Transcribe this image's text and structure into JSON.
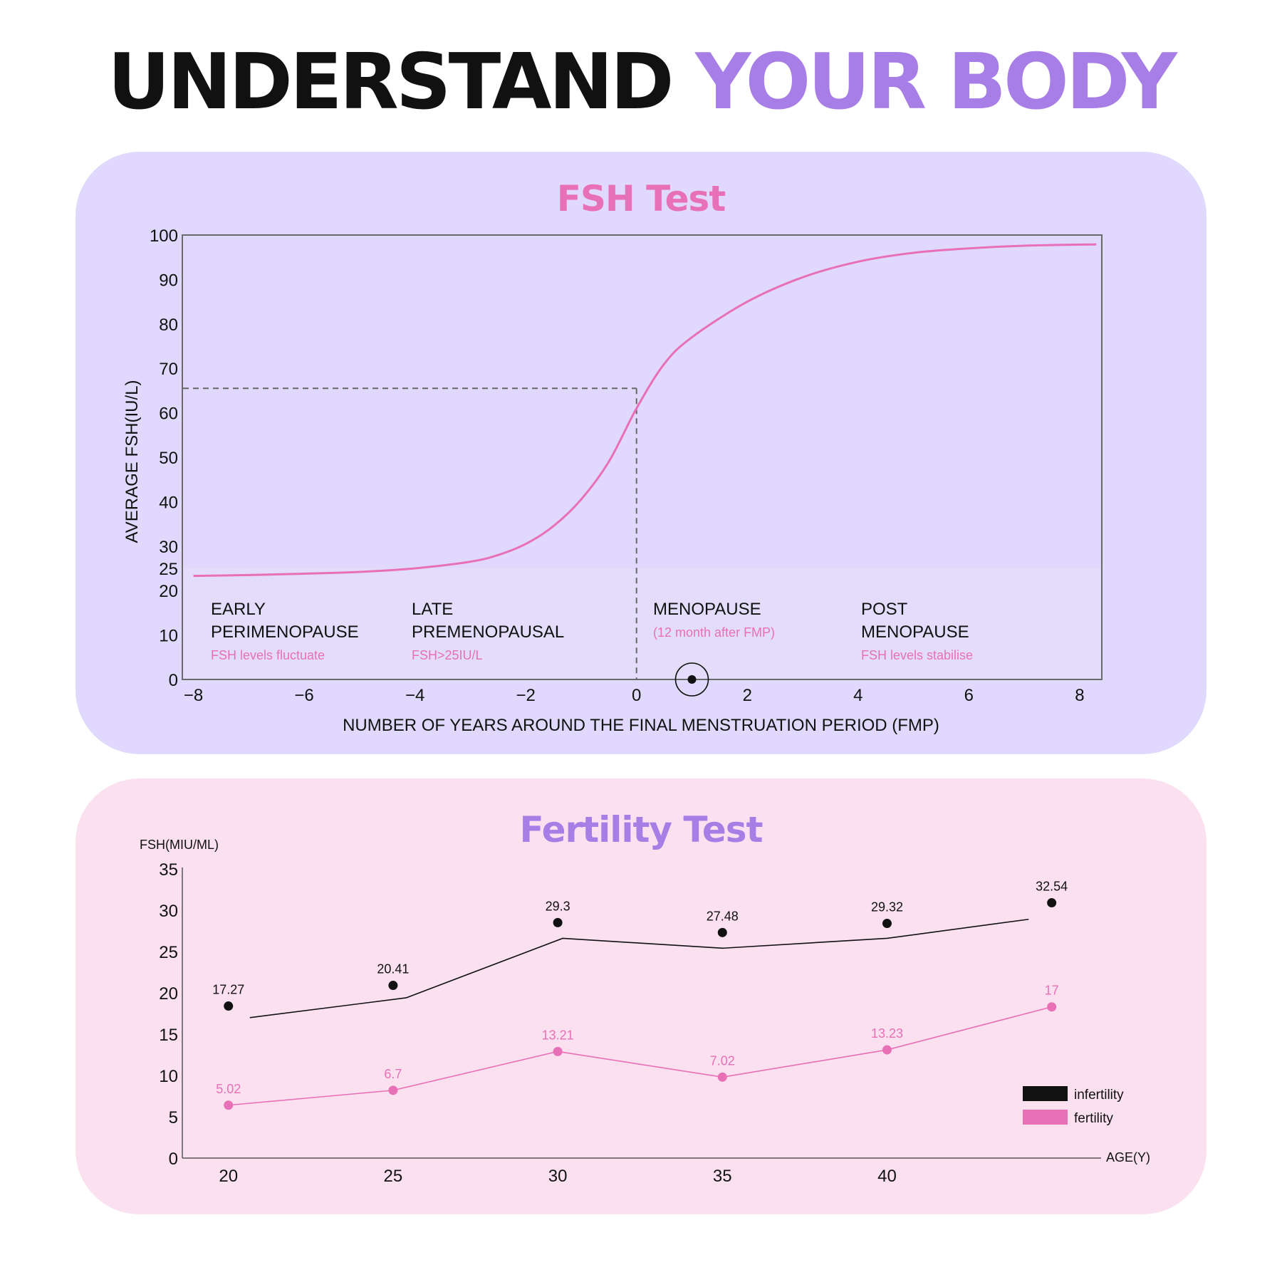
{
  "title": {
    "part1": "UNDERSTAND",
    "part2": "YOUR BODY"
  },
  "colors": {
    "accent_purple": "#a77de6",
    "accent_pink": "#e870b6",
    "fsh_panel": "#e0d9fd",
    "fert_panel": "#fbe0ef"
  },
  "fsh_panel": {
    "phases": [
      {
        "name_line1": "EARLY",
        "name_line2": "PERIMENOPAUSE",
        "note": "FSH levels fluctuate"
      },
      {
        "name_line1": "LATE",
        "name_line2": "PREMENOPAUSAL",
        "note": "FSH>25IU/L"
      },
      {
        "name_line1": "MENOPAUSE",
        "name_line2": "",
        "note": "(12 month after FMP)"
      },
      {
        "name_line1": "POST",
        "name_line2": "MENOPAUSE",
        "note": "FSH levels stabilise"
      }
    ]
  },
  "chart_data": [
    {
      "type": "line",
      "title": "FSH Test",
      "xlabel": "NUMBER OF YEARS AROUND THE FINAL MENSTRUATION PERIOD (FMP)",
      "ylabel": "AVERAGE FSH(IU/L)",
      "xlim": [
        -8.2,
        8.4
      ],
      "ylim": [
        0,
        100
      ],
      "x_ticks": [
        -8,
        -6,
        -4,
        -2,
        0,
        2,
        4,
        6,
        8
      ],
      "y_ticks": [
        0,
        10,
        20,
        25,
        30,
        40,
        50,
        60,
        70,
        80,
        90,
        100
      ],
      "grid": false,
      "series": [
        {
          "color": "#e870b6",
          "x": [
            -8,
            -7,
            -6,
            -5,
            -4,
            -3,
            -2.5,
            -2,
            -1.5,
            -1,
            -0.5,
            0,
            0.5,
            1,
            2,
            3,
            4,
            5,
            6,
            7,
            8.3
          ],
          "y": [
            23.3,
            23.5,
            23.8,
            24.2,
            25,
            26.5,
            28,
            30.5,
            34.5,
            40.5,
            49,
            61,
            71,
            77,
            85,
            90.5,
            94,
            96,
            97,
            97.6,
            97.9
          ]
        }
      ],
      "reference_lines": {
        "vertical_x": 0,
        "horizontal_y": 65.5
      },
      "marker": {
        "x": 1,
        "y": 0
      }
    },
    {
      "type": "line",
      "title": "Fertility Test",
      "xlabel": "AGE(Y)",
      "ylabel": "FSH(MIU/ML)",
      "categories": [
        20,
        25,
        30,
        35,
        40
      ],
      "x_ticks": [
        20,
        25,
        30,
        35,
        40
      ],
      "y_ticks": [
        0,
        5,
        10,
        15,
        20,
        25,
        30,
        35
      ],
      "ylim": [
        0,
        35
      ],
      "xlim": [
        18.6,
        46.5
      ],
      "legend": "right",
      "series": [
        {
          "name": "infertility",
          "color": "#111111",
          "points_x": [
            20,
            25,
            30,
            35,
            40,
            45
          ],
          "points_y": [
            18.4,
            20.9,
            28.5,
            27.3,
            28.4,
            30.9
          ],
          "labels": [
            "17.27",
            "20.41",
            "29.3",
            "27.48",
            "29.32",
            "32.54"
          ],
          "line_x": [
            20.65,
            25.4,
            30.15,
            35,
            40,
            44.3
          ],
          "line_y": [
            17,
            19.4,
            26.6,
            25.4,
            26.6,
            28.9
          ]
        },
        {
          "name": "fertility",
          "color": "#e870b6",
          "points_x": [
            20,
            25,
            30,
            35,
            40,
            45
          ],
          "points_y": [
            6.4,
            8.2,
            12.9,
            9.8,
            13.1,
            18.3
          ],
          "labels": [
            "5.02",
            "6.7",
            "13.21",
            "7.02",
            "13.23",
            "17"
          ]
        }
      ]
    }
  ]
}
